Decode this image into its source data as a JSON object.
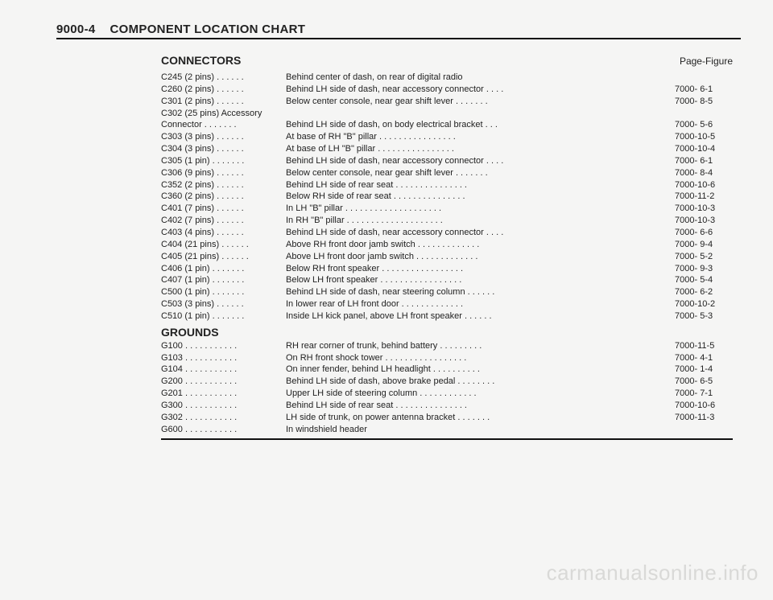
{
  "header": {
    "page_number": "9000-4",
    "title": "COMPONENT LOCATION CHART"
  },
  "sections": {
    "connectors": {
      "heading": "CONNECTORS",
      "page_figure_label": "Page-Figure",
      "rows": [
        {
          "label": "C245 (2 pins)",
          "desc": "Behind center of dash, on rear of digital radio",
          "page": ""
        },
        {
          "label": "C260 (2 pins)",
          "desc": "Behind LH side of dash, near accessory connector",
          "page": "7000-  6-1"
        },
        {
          "label": "C301 (2 pins)",
          "desc": "Below center console, near gear shift lever",
          "page": "7000-  8-5"
        },
        {
          "label": "C302 (25 pins) Accessory",
          "desc": "",
          "page": ""
        },
        {
          "label": "  Connector",
          "desc": "Behind LH side of dash, on body electrical bracket",
          "page": "7000-  5-6"
        },
        {
          "label": "C303 (3 pins)",
          "desc": "At base of RH \"B\" pillar",
          "page": "7000-10-5"
        },
        {
          "label": "C304 (3 pins)",
          "desc": "At base of LH \"B\" pillar",
          "page": "7000-10-4"
        },
        {
          "label": "C305 (1 pin)",
          "desc": "Behind LH side of dash, near accessory connector",
          "page": "7000-  6-1"
        },
        {
          "label": "C306 (9 pins)",
          "desc": "Below center console, near gear shift lever",
          "page": "7000-  8-4"
        },
        {
          "label": "C352 (2 pins)",
          "desc": "Behind LH side of rear seat",
          "page": "7000-10-6"
        },
        {
          "label": "C360 (2 pins)",
          "desc": "Below RH side of rear seat",
          "page": "7000-11-2"
        },
        {
          "label": "C401 (7 pins)",
          "desc": "In LH \"B\" pillar",
          "page": "7000-10-3"
        },
        {
          "label": "C402 (7 pins)",
          "desc": "In RH \"B\" pillar",
          "page": "7000-10-3"
        },
        {
          "label": "C403 (4 pins)",
          "desc": "Behind LH side of dash, near accessory connector",
          "page": "7000-  6-6"
        },
        {
          "label": "C404 (21 pins)",
          "desc": "Above RH front door jamb switch",
          "page": "7000-  9-4"
        },
        {
          "label": "C405 (21 pins)",
          "desc": "Above LH front door jamb switch",
          "page": "7000-  5-2"
        },
        {
          "label": "C406 (1 pin)",
          "desc": "Below RH front speaker",
          "page": "7000-  9-3"
        },
        {
          "label": "C407 (1 pin)",
          "desc": "Below LH front speaker",
          "page": "7000-  5-4"
        },
        {
          "label": "C500 (1 pin)",
          "desc": "Behind LH side of dash, near steering column",
          "page": "7000-  6-2"
        },
        {
          "label": "C503 (3 pins)",
          "desc": "In lower rear of LH front door",
          "page": "7000-10-2"
        },
        {
          "label": "C510 (1 pin)",
          "desc": "Inside LH kick panel, above LH front speaker",
          "page": "7000-  5-3"
        }
      ]
    },
    "grounds": {
      "heading": "GROUNDS",
      "rows": [
        {
          "label": "G100",
          "desc": "RH rear corner of trunk, behind battery",
          "page": "7000-11-5"
        },
        {
          "label": "G103",
          "desc": "On RH front shock tower",
          "page": "7000-  4-1"
        },
        {
          "label": "G104",
          "desc": "On inner fender, behind LH headlight",
          "page": "7000-  1-4"
        },
        {
          "label": "G200",
          "desc": "Behind LH side of dash, above brake pedal",
          "page": "7000-  6-5"
        },
        {
          "label": "G201",
          "desc": "Upper LH side of steering column",
          "page": "7000-  7-1"
        },
        {
          "label": "G300",
          "desc": "Behind LH side of rear seat",
          "page": "7000-10-6"
        },
        {
          "label": "G302",
          "desc": "LH side of trunk, on power antenna bracket",
          "page": "7000-11-3"
        },
        {
          "label": "G600",
          "desc": "In windshield header",
          "page": ""
        }
      ]
    }
  },
  "watermark": "carmanualsonline.info",
  "style": {
    "label_col_chars": 27,
    "desc_col_chars": 58
  }
}
